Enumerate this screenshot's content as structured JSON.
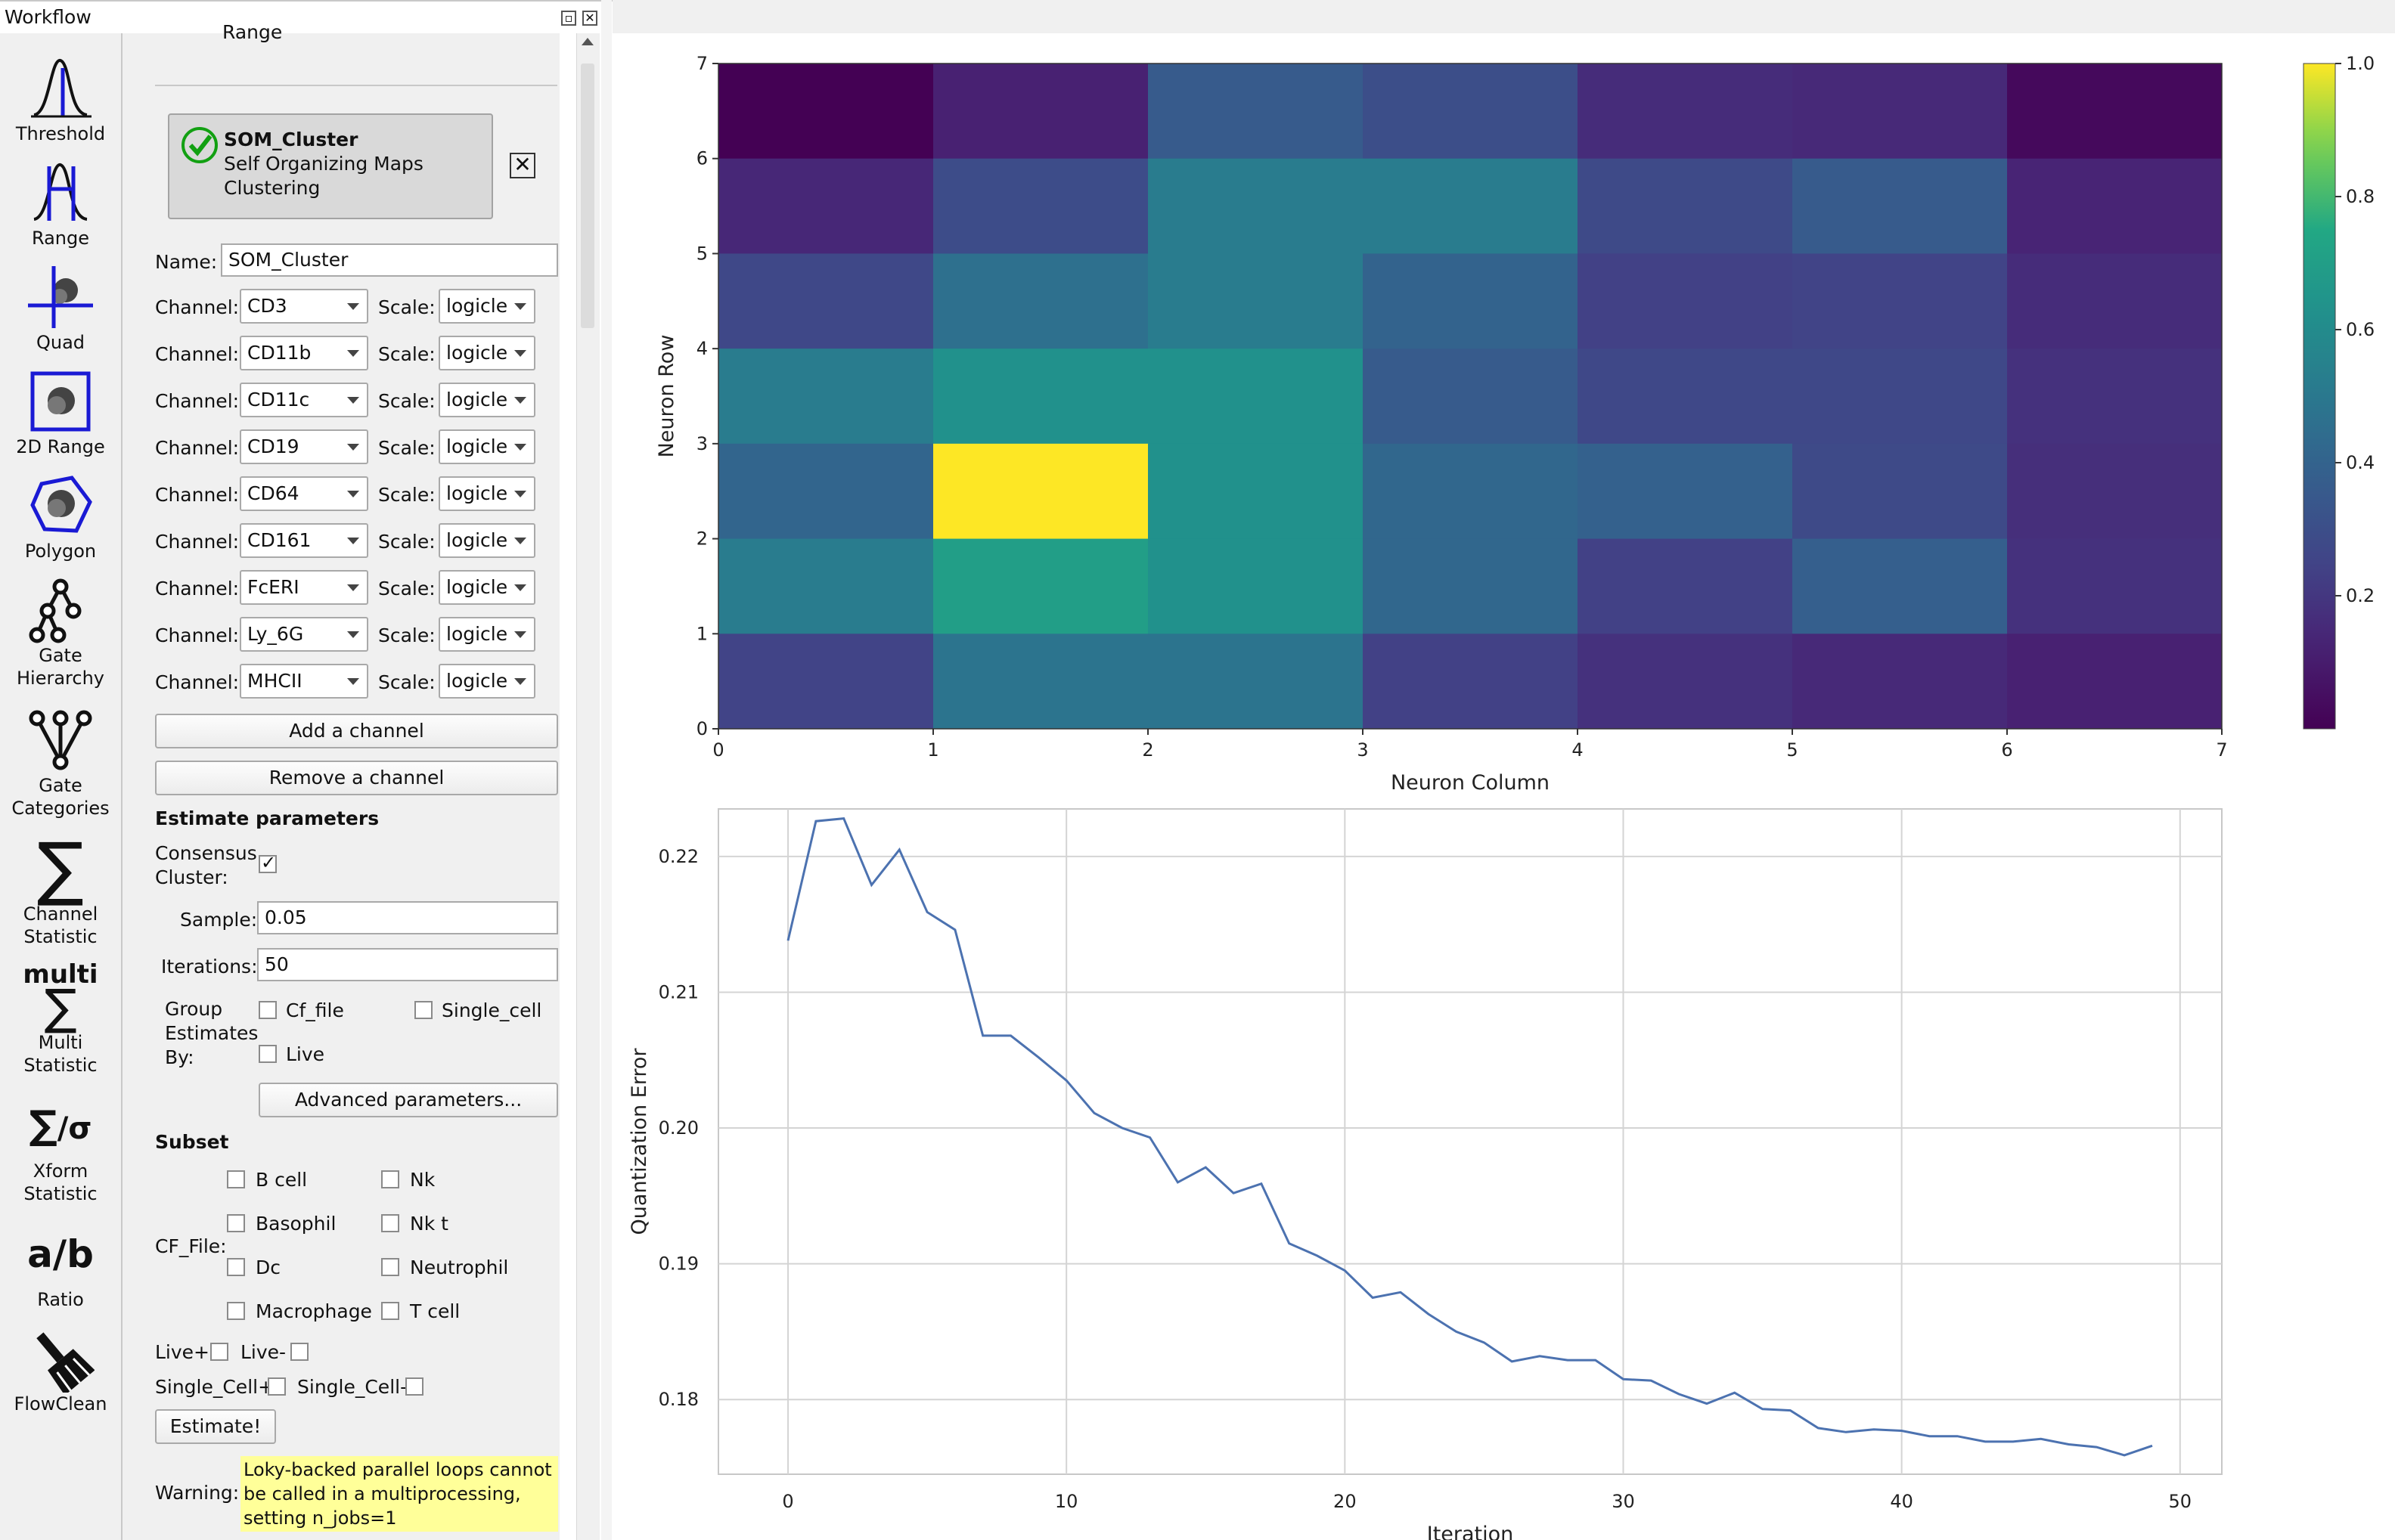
{
  "window": {
    "title": "Workflow"
  },
  "toolbar": {
    "items": [
      {
        "label": "Threshold",
        "icon": "threshold-icon"
      },
      {
        "label": "Range",
        "icon": "range-icon"
      },
      {
        "label": "Quad",
        "icon": "quad-icon"
      },
      {
        "label": "2D Range",
        "icon": "2d-range-icon"
      },
      {
        "label": "Polygon",
        "icon": "polygon-icon"
      },
      {
        "label": "Gate\nHierarchy",
        "icon": "gate-hierarchy-icon"
      },
      {
        "label": "Gate\nCategories",
        "icon": "gate-categories-icon"
      },
      {
        "label": "Channel\nStatistic",
        "icon": "channel-statistic-icon"
      },
      {
        "label": "Multi\nStatistic",
        "icon": "multi-statistic-icon"
      },
      {
        "label": "Xform\nStatistic",
        "icon": "xform-statistic-icon"
      },
      {
        "label": "Ratio",
        "icon": "ratio-icon"
      },
      {
        "label": "FlowClean",
        "icon": "flowclean-icon"
      }
    ]
  },
  "panel": {
    "prev_label": "Range",
    "operation": {
      "name": "SOM_Cluster",
      "desc1": "Self Organizing Maps",
      "desc2": "Clustering"
    },
    "name_label": "Name:",
    "name_value": "SOM_Cluster",
    "channel_label": "Channel:",
    "scale_label": "Scale:",
    "channels": [
      {
        "channel": "CD3",
        "scale": "logicle"
      },
      {
        "channel": "CD11b",
        "scale": "logicle"
      },
      {
        "channel": "CD11c",
        "scale": "logicle"
      },
      {
        "channel": "CD19",
        "scale": "logicle"
      },
      {
        "channel": "CD64",
        "scale": "logicle"
      },
      {
        "channel": "CD161",
        "scale": "logicle"
      },
      {
        "channel": "FcERI",
        "scale": "logicle"
      },
      {
        "channel": "Ly_6G",
        "scale": "logicle"
      },
      {
        "channel": "MHCII",
        "scale": "logicle"
      }
    ],
    "add_channel": "Add a channel",
    "remove_channel": "Remove a channel",
    "estimate_heading": "Estimate parameters",
    "consensus_label1": "Consensus",
    "consensus_label2": "Cluster:",
    "consensus_checked": true,
    "sample_label": "Sample:",
    "sample_value": "0.05",
    "iterations_label": "Iterations:",
    "iterations_value": "50",
    "group_label1": "Group",
    "group_label2": "Estimates",
    "group_label3": "By:",
    "group_options": [
      "Cf_file",
      "Single_cell",
      "Live"
    ],
    "advanced_button": "Advanced parameters...",
    "subset_heading": "Subset",
    "cf_file_label": "CF_File:",
    "cf_options": [
      "B cell",
      "Nk",
      "Basophil",
      "Nk t",
      "Dc",
      "Neutrophil",
      "Macrophage",
      "T cell"
    ],
    "live_plus": "Live+",
    "live_minus": "Live-",
    "single_plus": "Single_Cell+",
    "single_minus": "Single_Cell-",
    "estimate_button": "Estimate!",
    "warning_label": "Warning:",
    "warning_text": "Loky-backed parallel loops cannot be called in a multiprocessing, setting n_jobs=1"
  },
  "chart_data": [
    {
      "type": "heatmap",
      "xlabel": "Neuron Column",
      "ylabel": "Neuron Row",
      "xlim": [
        0,
        7
      ],
      "ylim": [
        0,
        7
      ],
      "xticks": [
        0,
        1,
        2,
        3,
        4,
        5,
        6,
        7
      ],
      "yticks": [
        0,
        1,
        2,
        3,
        4,
        5,
        6,
        7
      ],
      "colormap": "viridis",
      "colorbar_ticks": [
        "0.2",
        "0.4",
        "0.6",
        "0.8",
        "1.0"
      ],
      "rows_top_to_bottom": [
        [
          0.0,
          0.12,
          0.36,
          0.3,
          0.16,
          0.15,
          0.03
        ],
        [
          0.14,
          0.29,
          0.52,
          0.52,
          0.28,
          0.36,
          0.13
        ],
        [
          0.27,
          0.46,
          0.52,
          0.4,
          0.24,
          0.25,
          0.16
        ],
        [
          0.52,
          0.63,
          0.63,
          0.36,
          0.27,
          0.27,
          0.18
        ],
        [
          0.41,
          1.0,
          0.63,
          0.42,
          0.39,
          0.28,
          0.17
        ],
        [
          0.52,
          0.7,
          0.63,
          0.42,
          0.24,
          0.38,
          0.18
        ],
        [
          0.25,
          0.48,
          0.48,
          0.24,
          0.18,
          0.15,
          0.12
        ]
      ]
    },
    {
      "type": "line",
      "xlabel": "Iteration",
      "ylabel": "Quantization Error",
      "xlim": [
        -2.5,
        51.5
      ],
      "ylim": [
        0.1745,
        0.2235
      ],
      "xticks": [
        0,
        10,
        20,
        30,
        40,
        50
      ],
      "yticks": [
        "0.18",
        "0.19",
        "0.20",
        "0.21",
        "0.22"
      ],
      "grid": true,
      "color": "#4c72b0",
      "x": [
        0,
        1,
        2,
        3,
        4,
        5,
        6,
        7,
        8,
        9,
        10,
        11,
        12,
        13,
        14,
        15,
        16,
        17,
        18,
        19,
        20,
        21,
        22,
        23,
        24,
        25,
        26,
        27,
        28,
        29,
        30,
        31,
        32,
        33,
        34,
        35,
        36,
        37,
        38,
        39,
        40,
        41,
        42,
        43,
        44,
        45,
        46,
        47,
        48,
        49
      ],
      "y": [
        0.2138,
        0.2226,
        0.2228,
        0.2179,
        0.2205,
        0.2159,
        0.2146,
        0.2068,
        0.2068,
        0.2052,
        0.2035,
        0.2011,
        0.2,
        0.1993,
        0.196,
        0.1971,
        0.1952,
        0.1959,
        0.1915,
        0.1906,
        0.1895,
        0.1875,
        0.1879,
        0.1863,
        0.185,
        0.1842,
        0.1828,
        0.1832,
        0.1829,
        0.1829,
        0.1815,
        0.1814,
        0.1804,
        0.1797,
        0.1805,
        0.1793,
        0.1792,
        0.1779,
        0.1776,
        0.1778,
        0.1777,
        0.1773,
        0.1773,
        0.1769,
        0.1769,
        0.1771,
        0.1767,
        0.1765,
        0.1759,
        0.1766
      ]
    }
  ]
}
